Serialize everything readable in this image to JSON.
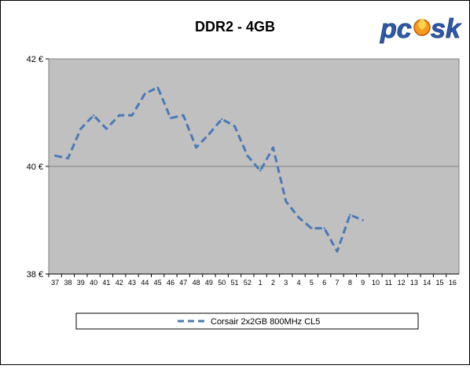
{
  "chart_data": {
    "type": "line",
    "title": "DDR2 - 4GB",
    "xlabel": "",
    "ylabel": "",
    "categories": [
      "37",
      "38",
      "39",
      "40",
      "41",
      "42",
      "43",
      "44",
      "45",
      "46",
      "47",
      "48",
      "49",
      "50",
      "51",
      "52",
      "1",
      "2",
      "3",
      "4",
      "5",
      "6",
      "7",
      "8",
      "9",
      "10",
      "11",
      "12",
      "13",
      "14",
      "15",
      "16"
    ],
    "ylim": [
      38,
      42
    ],
    "yticks": [
      {
        "value": 42,
        "label": "42 €"
      },
      {
        "value": 40,
        "label": "40 €"
      },
      {
        "value": 38,
        "label": "38 €"
      }
    ],
    "grid": "horizontal gridline at 40",
    "legend_position": "bottom",
    "series": [
      {
        "name": "Corsair 2x2GB 800MHz CL5",
        "color": "#4b79b5",
        "dash": "dashed",
        "values": [
          40.2,
          40.15,
          40.7,
          40.95,
          40.7,
          40.95,
          40.95,
          41.35,
          41.47,
          40.9,
          40.95,
          40.35,
          40.6,
          40.88,
          40.75,
          40.2,
          39.92,
          40.35,
          39.35,
          39.05,
          38.85,
          38.85,
          38.42,
          39.1,
          39.0,
          null,
          null,
          null,
          null,
          null,
          null,
          null
        ]
      }
    ],
    "colors": {
      "plot_background": "#c0c0c0",
      "page_background": "#ffffff",
      "gridline": "#808080"
    }
  },
  "logo": {
    "text": "pcask"
  }
}
